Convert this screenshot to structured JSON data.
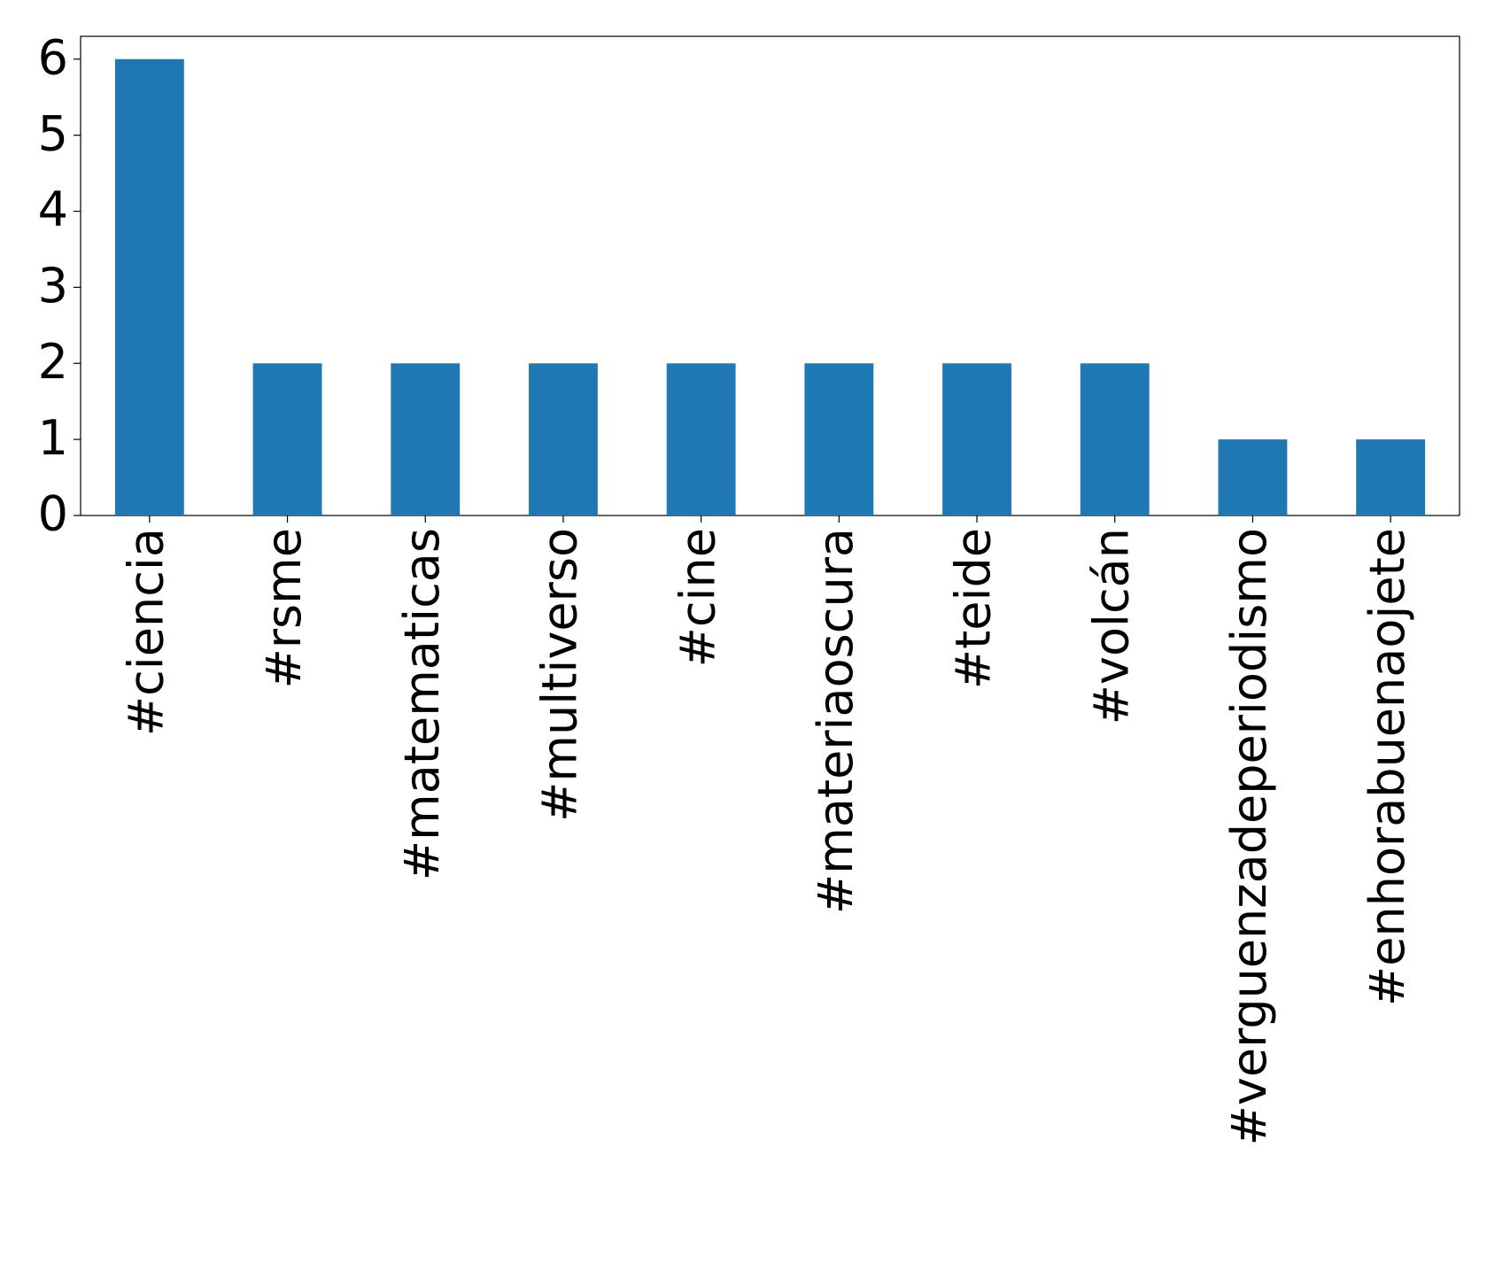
{
  "chart_data": {
    "type": "bar",
    "categories": [
      "#ciencia",
      "#rsme",
      "#matematicas",
      "#multiverso",
      "#cine",
      "#materiaoscura",
      "#teide",
      "#volcán",
      "#verguenzadeperiodismo",
      "#enhorabuenaojete"
    ],
    "values": [
      6,
      2,
      2,
      2,
      2,
      2,
      2,
      2,
      1,
      1
    ],
    "color": "#1f77b4",
    "ylim": [
      0,
      6.3
    ],
    "yticks": [
      0,
      1,
      2,
      3,
      4,
      5,
      6
    ],
    "grid": false
  }
}
